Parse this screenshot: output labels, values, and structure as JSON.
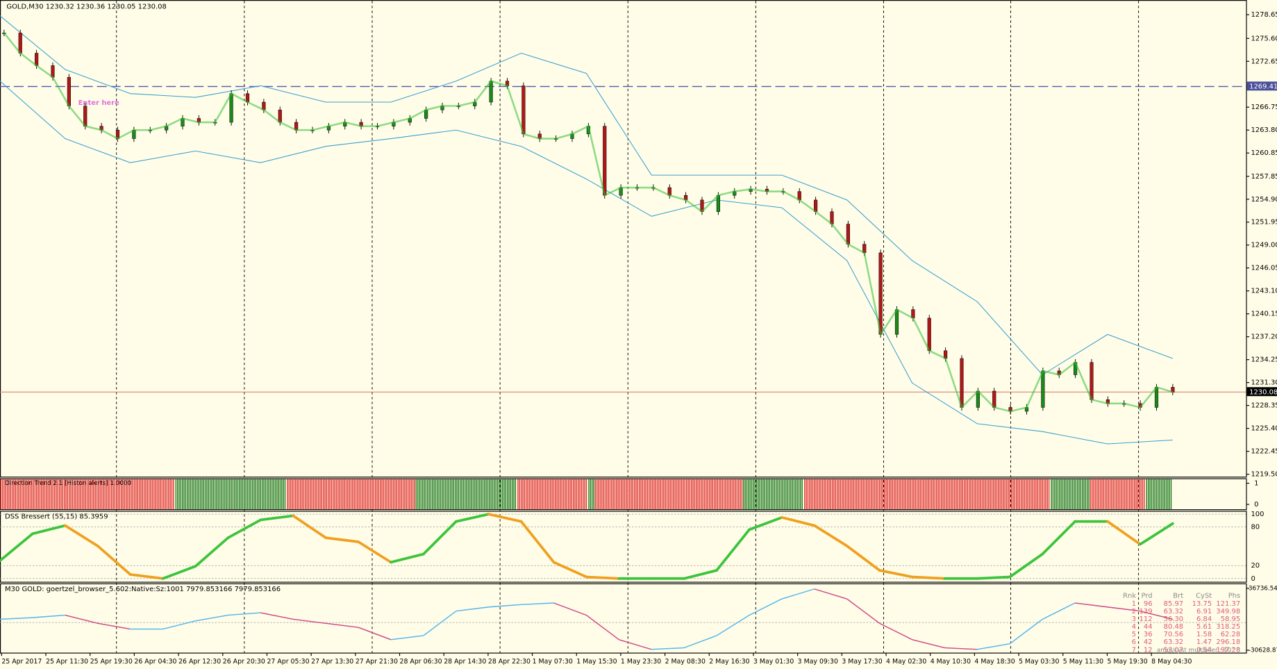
{
  "header": {
    "title": "GOLD,M30  1230.32 1230.36 1230.05 1230.08"
  },
  "main": {
    "ylim": [
      1219.5,
      1278.65
    ],
    "yticks": [
      1278.65,
      {
        "value": 1275.6,
        "label": "1275.60"
      },
      1272.65,
      1266.75,
      {
        "value": 1263.8,
        "label": "1263.80"
      },
      1260.85,
      1257.85,
      {
        "value": 1254.9,
        "label": "1254.90"
      },
      1251.95,
      {
        "value": 1249,
        "label": "1249.00"
      },
      1246.05,
      {
        "value": 1243.1,
        "label": "1243.10"
      },
      1240.15,
      {
        "value": 1237.2,
        "label": "1237.20"
      },
      1234.25,
      {
        "value": 1231.3,
        "label": "1231.30"
      },
      1228.35,
      {
        "value": 1225.4,
        "label": "1225.40"
      },
      1222.45,
      {
        "value": 1219.5,
        "label": "1219.50"
      }
    ],
    "level": 1269.41,
    "last_price": 1230.08,
    "annotation": "Enter here",
    "close": [
      1276.3,
      1273.7,
      1272.1,
      1270.6,
      1266.9,
      1264.3,
      1263.8,
      1262.7,
      1263.8,
      1263.8,
      1264.3,
      1265.3,
      1264.8,
      1264.8,
      1268.5,
      1267.4,
      1266.4,
      1264.8,
      1263.8,
      1263.8,
      1264.3,
      1264.8,
      1264.3,
      1264.3,
      1264.8,
      1265.3,
      1266.4,
      1266.9,
      1266.9,
      1267.4,
      1270.1,
      1269.5,
      1263.3,
      1262.7,
      1262.7,
      1263.3,
      1264.3,
      1255.4,
      1256.4,
      1256.4,
      1256.4,
      1255.4,
      1254.8,
      1253.3,
      1255.4,
      1255.9,
      1256.2,
      1255.9,
      1255.9,
      1254.8,
      1253.3,
      1251.7,
      1249.1,
      1248.0,
      1237.5,
      1240.7,
      1239.6,
      1235.4,
      1234.4,
      1228.1,
      1230.2,
      1228.1,
      1227.6,
      1228.1,
      1232.8,
      1232.3,
      1233.9,
      1229.1,
      1228.6,
      1228.6,
      1228.1,
      1230.7,
      1230.08
    ],
    "band_upper": [
      1278.5,
      1271.6,
      1268.5,
      1268.0,
      1269.5,
      1267.4,
      1267.4,
      1270.1,
      1273.7,
      1271.1,
      1258.0,
      1258.0,
      1258.0,
      1254.8,
      1247.0,
      1241.7,
      1232.3,
      1237.5,
      1234.4
    ],
    "band_lower": [
      1270.1,
      1262.7,
      1259.6,
      1261.1,
      1259.6,
      1261.7,
      1262.7,
      1263.8,
      1261.7,
      1257.5,
      1252.7,
      1254.8,
      1253.8,
      1247.0,
      1231.25,
      1226.0,
      1225.0,
      1223.4,
      1223.9
    ]
  },
  "trend_panel": {
    "label": "Direction Trend 2.1 [Histon alerts] 1.0000",
    "yticks": [
      1,
      0
    ]
  },
  "dss_panel": {
    "label": "DSS Bressert (55,15) 85.3959",
    "ylim": [
      0,
      100
    ],
    "yticks": [
      100,
      80,
      20,
      0
    ],
    "values": [
      27.8,
      69.6,
      82.3,
      50.6,
      6.3,
      0,
      19.0,
      63.3,
      91.1,
      97.5,
      63.3,
      57.0,
      25.3,
      38.0,
      88.6,
      100,
      88.6,
      25.3,
      2.5,
      0,
      0,
      0,
      12.7,
      75.9,
      94.9,
      82.3,
      50.6,
      12.7,
      2.5,
      0,
      0,
      2.5,
      38.0,
      88.6,
      88.6,
      53.2,
      85.4
    ]
  },
  "goertzel_panel": {
    "label": "M30 GOLD: goertzel_browser_5.602:Native:Sz:1001 7979.853166 7979.853166",
    "ylim": [
      -30628.87,
      36736.54
    ],
    "yticks": [
      36736.54,
      -30628.87
    ],
    "values": [
      3054,
      4827,
      7486,
      -1378,
      -7583,
      -7583,
      1281,
      7486,
      10145,
      3054,
      -1378,
      -5810,
      -19106,
      -14674,
      11918,
      16350,
      19009,
      20782,
      7486,
      -19106,
      -29743,
      -27970,
      -14674,
      7486,
      25214,
      36000,
      25214,
      -1378,
      -19106,
      -27970,
      -29743,
      -23538,
      3054,
      20782,
      16350,
      11918,
      3054
    ],
    "table": {
      "header": [
        "Rnk",
        "Prd",
        "Brt",
        "CySt",
        "Phs"
      ],
      "rows": [
        [
          "1",
          "96",
          "85.97",
          "13.75",
          "121.37"
        ],
        [
          "2",
          "139",
          "63.32",
          "6.91",
          "349.98"
        ],
        [
          "3",
          "112",
          "56.30",
          "6.84",
          "58.95"
        ],
        [
          "4",
          "44",
          "80.48",
          "5.61",
          "318.25"
        ],
        [
          "5",
          "36",
          "70.56",
          "1.58",
          "62.28"
        ],
        [
          "6",
          "42",
          "63.32",
          "1.47",
          "296.18"
        ],
        [
          "7",
          "12",
          "53.07",
          "0.54",
          "197.28"
        ]
      ],
      "footer": "ampl/cyst multiplier : 10^3"
    }
  },
  "time_axis": {
    "labels": [
      "25 Apr 2017",
      "25 Apr 11:30",
      "25 Apr 19:30",
      "26 Apr 04:30",
      "26 Apr 12:30",
      "26 Apr 20:30",
      "27 Apr 05:30",
      "27 Apr 13:30",
      "27 Apr 21:30",
      "28 Apr 06:30",
      "28 Apr 14:30",
      "28 Apr 22:30",
      "1 May 07:30",
      "1 May 15:30",
      "1 May 23:30",
      "2 May 08:30",
      "2 May 16:30",
      "3 May 01:30",
      "3 May 09:30",
      "3 May 17:30",
      "4 May 02:30",
      "4 May 10:30",
      "4 May 18:30",
      "5 May 03:30",
      "5 May 11:30",
      "5 May 19:30",
      "8 May 04:30"
    ]
  }
}
